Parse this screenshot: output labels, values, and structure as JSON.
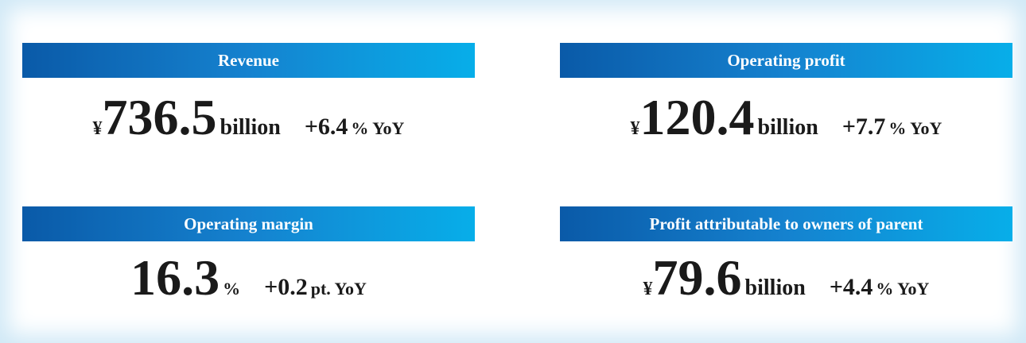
{
  "items": [
    {
      "title": "Revenue",
      "prefix": "¥",
      "value": "736.5",
      "unit": "billion",
      "change": "+6.4",
      "change_unit": "% YoY"
    },
    {
      "title": "Operating profit",
      "prefix": "¥",
      "value": "120.4",
      "unit": "billion",
      "change": "+7.7",
      "change_unit": "% YoY"
    },
    {
      "title": "Operating margin",
      "value": "16.3",
      "unit": "%",
      "change": "+0.2",
      "change_unit": "pt. YoY"
    },
    {
      "title": "Profit attributable to owners of parent",
      "prefix": "¥",
      "value": "79.6",
      "unit": "billion",
      "change": "+4.4",
      "change_unit": "% YoY"
    }
  ]
}
